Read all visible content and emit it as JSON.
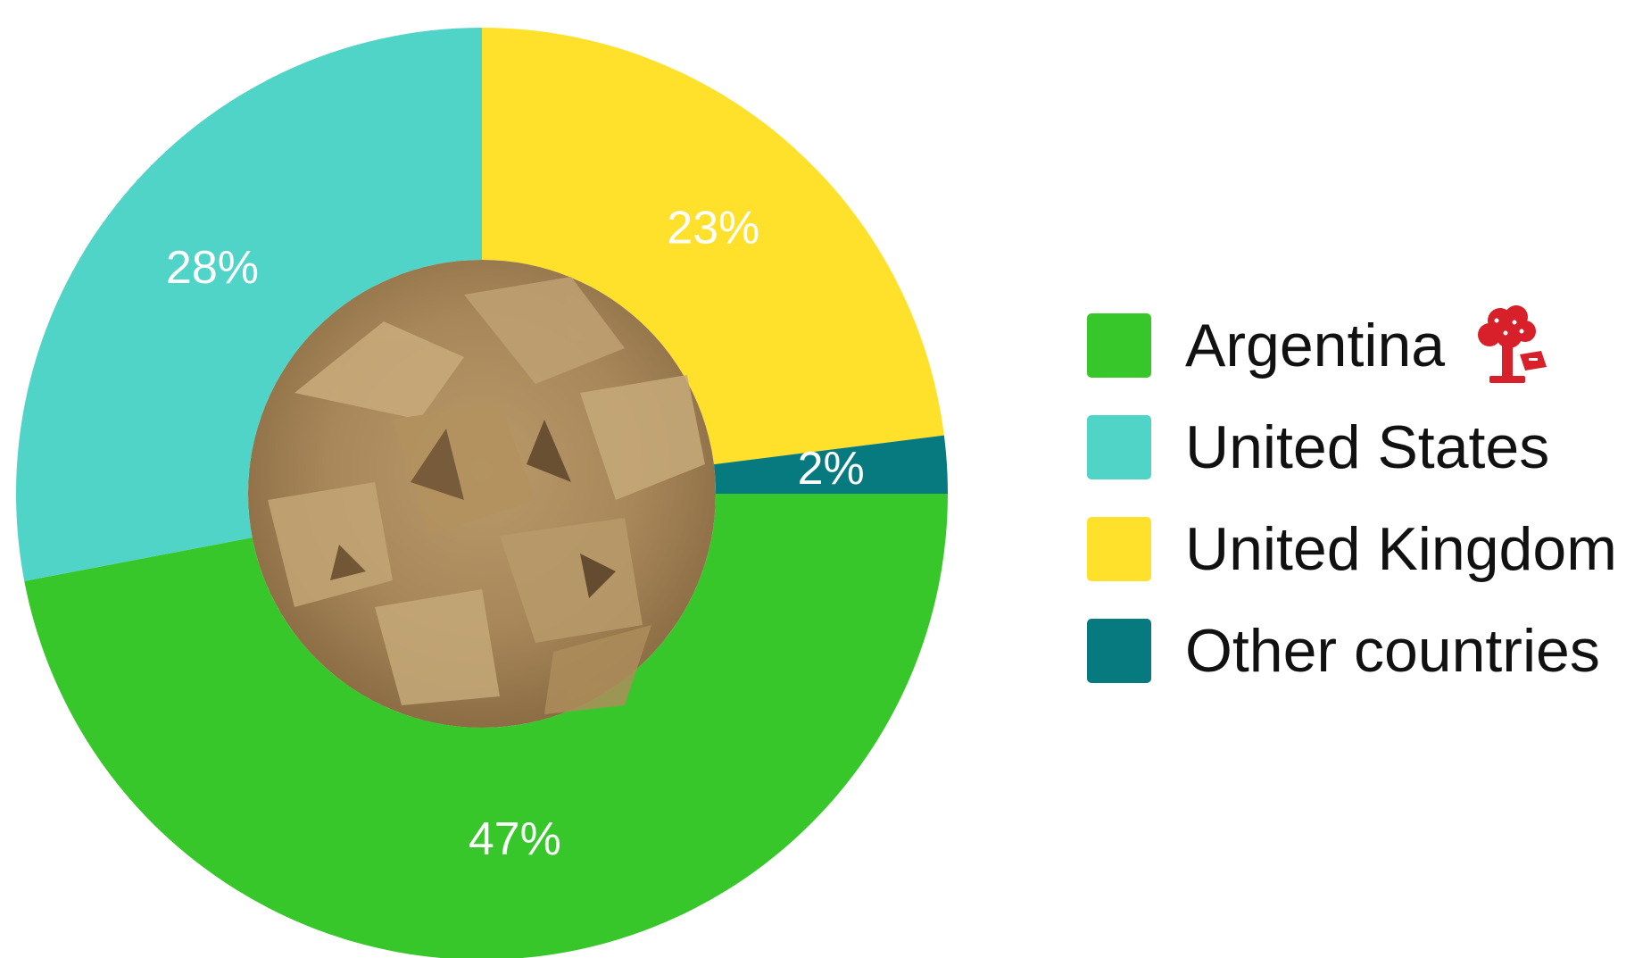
{
  "chart_data": {
    "type": "pie",
    "donut": true,
    "title": "",
    "legend_position": "right",
    "slices": [
      {
        "name": "Argentina",
        "value": 47,
        "label": "47%",
        "color": "#38C72B"
      },
      {
        "name": "United States",
        "value": 28,
        "label": "28%",
        "color": "#50D4C8"
      },
      {
        "name": "United Kingdom",
        "value": 23,
        "label": "23%",
        "color": "#FFE12B"
      },
      {
        "name": "Other countries",
        "value": 2,
        "label": "2%",
        "color": "#077A7F"
      }
    ],
    "center_image": "oilseed-cake-photo",
    "legend_icon": "tree-with-flag-icon",
    "legend_icon_color": "#D7202A"
  }
}
